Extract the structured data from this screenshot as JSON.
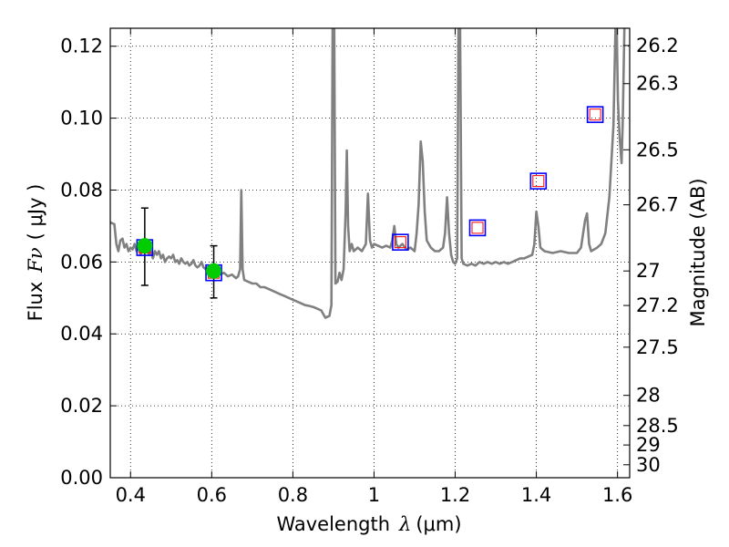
{
  "chart_data": {
    "type": "scatter",
    "xlabel_text": "Wavelength",
    "xlabel_symbol": "λ",
    "xlabel_unit": "(μm)",
    "ylabel_text": "Flux",
    "ylabel_symbol": "Fν",
    "ylabel_unit": "( μJy )",
    "y2label": "Magnitude (AB)",
    "xlim": [
      0.35,
      1.63
    ],
    "ylim": [
      0.0,
      0.125
    ],
    "grid": true,
    "x_ticks": [
      {
        "value": 0.4,
        "label": "0.4"
      },
      {
        "value": 0.6,
        "label": "0.6"
      },
      {
        "value": 0.8,
        "label": "0.8"
      },
      {
        "value": 1.0,
        "label": "1"
      },
      {
        "value": 1.2,
        "label": "1.2"
      },
      {
        "value": 1.4,
        "label": "1.4"
      },
      {
        "value": 1.6,
        "label": "1.6"
      }
    ],
    "y_ticks": [
      {
        "value": 0.0,
        "label": "0.00"
      },
      {
        "value": 0.02,
        "label": "0.02"
      },
      {
        "value": 0.04,
        "label": "0.04"
      },
      {
        "value": 0.06,
        "label": "0.06"
      },
      {
        "value": 0.08,
        "label": "0.08"
      },
      {
        "value": 0.1,
        "label": "0.10"
      },
      {
        "value": 0.12,
        "label": "0.12"
      }
    ],
    "mag_ticks": [
      {
        "flux": 0.1202,
        "label": "26.2"
      },
      {
        "flux": 0.1096,
        "label": "26.3"
      },
      {
        "flux": 0.0912,
        "label": "26.5"
      },
      {
        "flux": 0.0759,
        "label": "26.7"
      },
      {
        "flux": 0.0575,
        "label": "27"
      },
      {
        "flux": 0.0479,
        "label": "27.2"
      },
      {
        "flux": 0.0363,
        "label": "27.5"
      },
      {
        "flux": 0.0229,
        "label": "28"
      },
      {
        "flux": 0.0145,
        "label": "28.5"
      },
      {
        "flux": 0.0091,
        "label": "29"
      },
      {
        "flux": 0.0036,
        "label": "30"
      }
    ],
    "spectrum": {
      "color": "#808080",
      "points": [
        [
          0.35,
          0.071
        ],
        [
          0.36,
          0.0705
        ],
        [
          0.365,
          0.065
        ],
        [
          0.37,
          0.063
        ],
        [
          0.375,
          0.066
        ],
        [
          0.38,
          0.0665
        ],
        [
          0.385,
          0.064
        ],
        [
          0.39,
          0.065
        ],
        [
          0.395,
          0.063
        ],
        [
          0.4,
          0.064
        ],
        [
          0.405,
          0.0635
        ],
        [
          0.41,
          0.065
        ],
        [
          0.415,
          0.063
        ],
        [
          0.42,
          0.064
        ],
        [
          0.425,
          0.062
        ],
        [
          0.43,
          0.0645
        ],
        [
          0.435,
          0.063
        ],
        [
          0.44,
          0.065
        ],
        [
          0.445,
          0.062
        ],
        [
          0.45,
          0.063
        ],
        [
          0.455,
          0.061
        ],
        [
          0.46,
          0.063
        ],
        [
          0.465,
          0.062
        ],
        [
          0.47,
          0.063
        ],
        [
          0.475,
          0.061
        ],
        [
          0.48,
          0.062
        ],
        [
          0.485,
          0.06
        ],
        [
          0.49,
          0.061
        ],
        [
          0.495,
          0.0615
        ],
        [
          0.5,
          0.061
        ],
        [
          0.505,
          0.062
        ],
        [
          0.51,
          0.06
        ],
        [
          0.515,
          0.0605
        ],
        [
          0.52,
          0.0595
        ],
        [
          0.525,
          0.061
        ],
        [
          0.53,
          0.06
        ],
        [
          0.535,
          0.0595
        ],
        [
          0.54,
          0.06
        ],
        [
          0.545,
          0.059
        ],
        [
          0.55,
          0.0595
        ],
        [
          0.555,
          0.0605
        ],
        [
          0.56,
          0.059
        ],
        [
          0.565,
          0.0585
        ],
        [
          0.57,
          0.059
        ],
        [
          0.575,
          0.06
        ],
        [
          0.58,
          0.0585
        ],
        [
          0.585,
          0.058
        ],
        [
          0.59,
          0.0585
        ],
        [
          0.6,
          0.0575
        ],
        [
          0.61,
          0.058
        ],
        [
          0.62,
          0.0565
        ],
        [
          0.63,
          0.057
        ],
        [
          0.64,
          0.056
        ],
        [
          0.65,
          0.0565
        ],
        [
          0.66,
          0.0555
        ],
        [
          0.665,
          0.056
        ],
        [
          0.67,
          0.058
        ],
        [
          0.673,
          0.08
        ],
        [
          0.676,
          0.058
        ],
        [
          0.68,
          0.055
        ],
        [
          0.69,
          0.0545
        ],
        [
          0.7,
          0.054
        ],
        [
          0.71,
          0.054
        ],
        [
          0.72,
          0.053
        ],
        [
          0.73,
          0.053
        ],
        [
          0.74,
          0.0525
        ],
        [
          0.75,
          0.052
        ],
        [
          0.76,
          0.0515
        ],
        [
          0.77,
          0.051
        ],
        [
          0.78,
          0.0505
        ],
        [
          0.79,
          0.05
        ],
        [
          0.8,
          0.0495
        ],
        [
          0.81,
          0.049
        ],
        [
          0.82,
          0.0485
        ],
        [
          0.83,
          0.048
        ],
        [
          0.84,
          0.0478
        ],
        [
          0.85,
          0.0475
        ],
        [
          0.86,
          0.047
        ],
        [
          0.87,
          0.0465
        ],
        [
          0.88,
          0.0445
        ],
        [
          0.89,
          0.045
        ],
        [
          0.895,
          0.048
        ],
        [
          0.898,
          0.125
        ],
        [
          0.902,
          0.125
        ],
        [
          0.905,
          0.054
        ],
        [
          0.91,
          0.0545
        ],
        [
          0.915,
          0.057
        ],
        [
          0.92,
          0.055
        ],
        [
          0.925,
          0.058
        ],
        [
          0.93,
          0.074
        ],
        [
          0.933,
          0.091
        ],
        [
          0.936,
          0.07
        ],
        [
          0.94,
          0.063
        ],
        [
          0.945,
          0.065
        ],
        [
          0.95,
          0.063
        ],
        [
          0.96,
          0.064
        ],
        [
          0.97,
          0.063
        ],
        [
          0.975,
          0.064
        ],
        [
          0.98,
          0.065
        ],
        [
          0.985,
          0.079
        ],
        [
          0.99,
          0.066
        ],
        [
          0.995,
          0.064
        ],
        [
          1.0,
          0.065
        ],
        [
          1.01,
          0.0645
        ],
        [
          1.02,
          0.064
        ],
        [
          1.03,
          0.0645
        ],
        [
          1.04,
          0.064
        ],
        [
          1.045,
          0.066
        ],
        [
          1.05,
          0.07
        ],
        [
          1.055,
          0.065
        ],
        [
          1.06,
          0.064
        ],
        [
          1.07,
          0.065
        ],
        [
          1.08,
          0.0635
        ],
        [
          1.09,
          0.064
        ],
        [
          1.1,
          0.063
        ],
        [
          1.105,
          0.068
        ],
        [
          1.11,
          0.076
        ],
        [
          1.115,
          0.0935
        ],
        [
          1.12,
          0.088
        ],
        [
          1.125,
          0.074
        ],
        [
          1.13,
          0.066
        ],
        [
          1.14,
          0.064
        ],
        [
          1.15,
          0.063
        ],
        [
          1.16,
          0.063
        ],
        [
          1.17,
          0.064
        ],
        [
          1.175,
          0.068
        ],
        [
          1.18,
          0.078
        ],
        [
          1.185,
          0.068
        ],
        [
          1.19,
          0.062
        ],
        [
          1.195,
          0.06
        ],
        [
          1.2,
          0.0595
        ],
        [
          1.205,
          0.061
        ],
        [
          1.208,
          0.125
        ],
        [
          1.212,
          0.125
        ],
        [
          1.216,
          0.061
        ],
        [
          1.22,
          0.0595
        ],
        [
          1.23,
          0.059
        ],
        [
          1.24,
          0.0595
        ],
        [
          1.25,
          0.059
        ],
        [
          1.26,
          0.06
        ],
        [
          1.27,
          0.0595
        ],
        [
          1.28,
          0.06
        ],
        [
          1.29,
          0.0595
        ],
        [
          1.3,
          0.06
        ],
        [
          1.31,
          0.0595
        ],
        [
          1.32,
          0.06
        ],
        [
          1.33,
          0.0595
        ],
        [
          1.34,
          0.06
        ],
        [
          1.35,
          0.0605
        ],
        [
          1.36,
          0.061
        ],
        [
          1.37,
          0.061
        ],
        [
          1.38,
          0.0615
        ],
        [
          1.39,
          0.062
        ],
        [
          1.395,
          0.065
        ],
        [
          1.4,
          0.074
        ],
        [
          1.405,
          0.07
        ],
        [
          1.41,
          0.064
        ],
        [
          1.42,
          0.063
        ],
        [
          1.44,
          0.0625
        ],
        [
          1.46,
          0.063
        ],
        [
          1.48,
          0.0625
        ],
        [
          1.5,
          0.0625
        ],
        [
          1.51,
          0.064
        ],
        [
          1.52,
          0.0715
        ],
        [
          1.525,
          0.0735
        ],
        [
          1.53,
          0.065
        ],
        [
          1.535,
          0.063
        ],
        [
          1.55,
          0.064
        ],
        [
          1.56,
          0.065
        ],
        [
          1.57,
          0.068
        ],
        [
          1.58,
          0.078
        ],
        [
          1.59,
          0.098
        ],
        [
          1.595,
          0.125
        ],
        [
          1.598,
          0.125
        ],
        [
          1.601,
          0.105
        ],
        [
          1.605,
          0.095
        ],
        [
          1.61,
          0.0875
        ],
        [
          1.613,
          0.099
        ],
        [
          1.617,
          0.125
        ],
        [
          1.62,
          0.125
        ]
      ]
    },
    "observed": {
      "marker_color": "#00cc00",
      "errorbar_color": "#000000",
      "points": [
        {
          "x": 0.435,
          "y": 0.0645,
          "yerr_low": 0.0535,
          "yerr_high": 0.075
        },
        {
          "x": 0.605,
          "y": 0.0575,
          "yerr_low": 0.05,
          "yerr_high": 0.0645
        }
      ]
    },
    "model_boxes": {
      "outer_color": "#0000ff",
      "inner_color": "#ff0000",
      "points": [
        {
          "x": 0.435,
          "y": 0.064
        },
        {
          "x": 0.605,
          "y": 0.057
        },
        {
          "x": 1.065,
          "y": 0.0655
        },
        {
          "x": 1.255,
          "y": 0.0695
        },
        {
          "x": 1.405,
          "y": 0.0825
        },
        {
          "x": 1.545,
          "y": 0.101
        }
      ]
    }
  }
}
